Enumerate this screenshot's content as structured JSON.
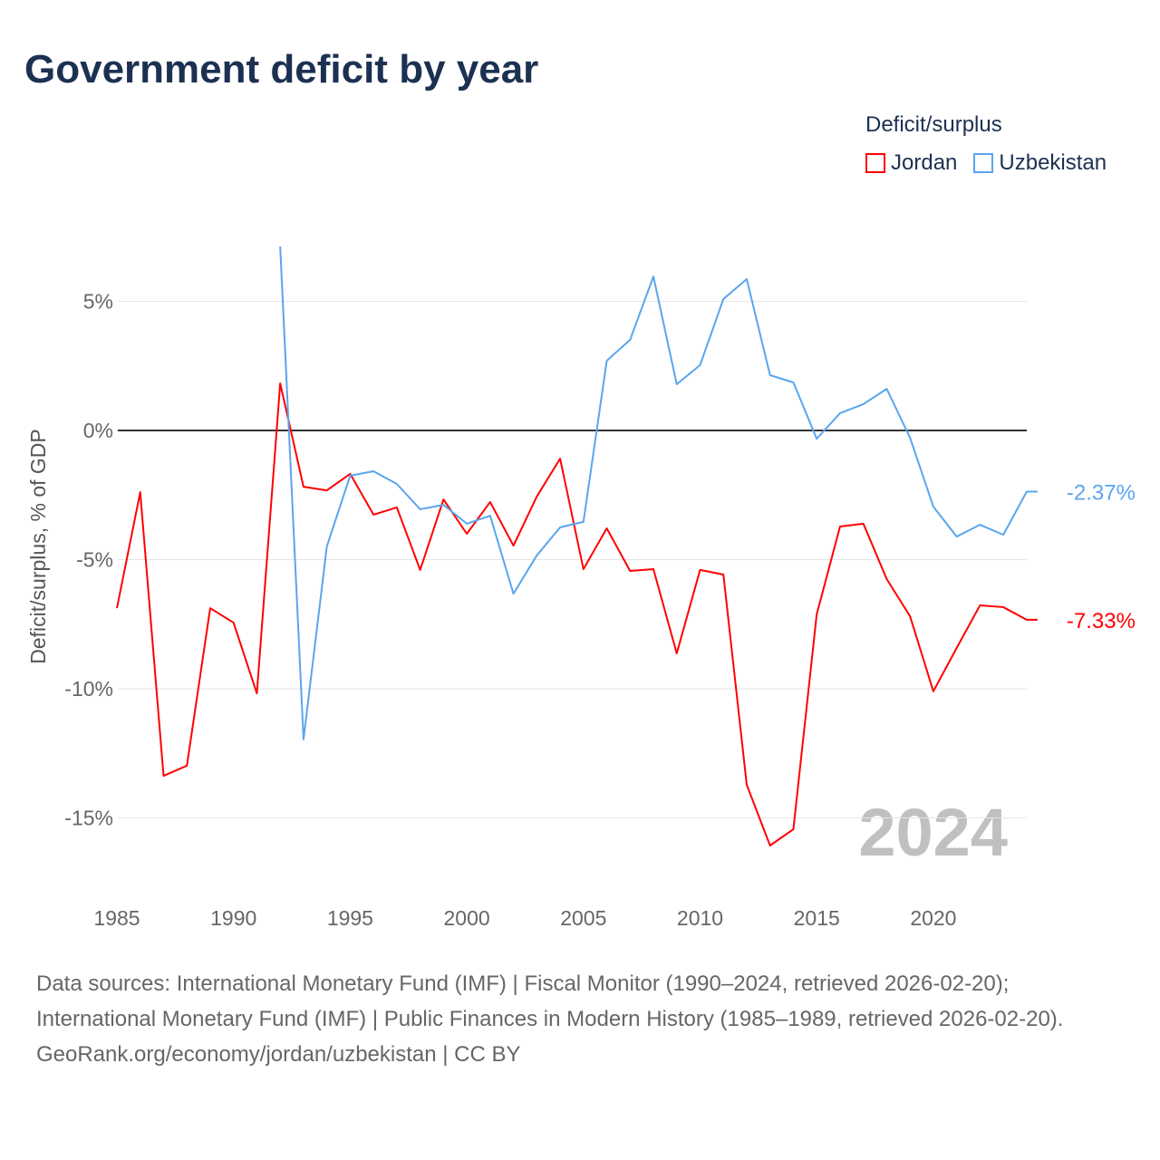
{
  "title": "Government deficit by year",
  "legend": {
    "title": "Deficit/surplus",
    "items": [
      {
        "label": "Jordan",
        "color": "#ff0000"
      },
      {
        "label": "Uzbekistan",
        "color": "#5aa5ef"
      }
    ]
  },
  "year_watermark": "2024",
  "chart_data": {
    "type": "line",
    "title": "Government deficit by year",
    "xlabel": "",
    "ylabel": "Deficit/surplus, % of GDP",
    "xlim": [
      1985,
      2024
    ],
    "ylim": [
      -17,
      7.2
    ],
    "x_ticks": [
      1985,
      1990,
      1995,
      2000,
      2005,
      2010,
      2015,
      2020
    ],
    "x_tick_labels": [
      "1985",
      "1990",
      "1995",
      "2000",
      "2005",
      "2010",
      "2015",
      "2020"
    ],
    "y_ticks": [
      5,
      0,
      -5,
      -10,
      -15
    ],
    "y_tick_labels": [
      "5%",
      "0%",
      "-5%",
      "-10%",
      "-15%"
    ],
    "grid": true,
    "legend_position": "top-right",
    "series": [
      {
        "name": "Jordan",
        "color": "#ff0000",
        "end_label": "-7.33%",
        "x": [
          1985,
          1986,
          1987,
          1988,
          1989,
          1990,
          1991,
          1992,
          1993,
          1994,
          1995,
          1996,
          1997,
          1998,
          1999,
          2000,
          2001,
          2002,
          2003,
          2004,
          2005,
          2006,
          2007,
          2008,
          2009,
          2010,
          2011,
          2012,
          2013,
          2014,
          2015,
          2016,
          2017,
          2018,
          2019,
          2020,
          2021,
          2022,
          2023,
          2024
        ],
        "values": [
          -6.88,
          -2.39,
          -13.37,
          -12.98,
          -6.88,
          -7.44,
          -10.18,
          1.82,
          -2.18,
          -2.32,
          -1.68,
          -3.26,
          -2.98,
          -5.4,
          -2.67,
          -4.0,
          -2.77,
          -4.46,
          -2.56,
          -1.09,
          -5.37,
          -3.79,
          -5.44,
          -5.37,
          -8.63,
          -5.4,
          -5.58,
          -13.72,
          -16.07,
          -15.44,
          -7.12,
          -3.72,
          -3.61,
          -5.75,
          -7.19,
          -10.1,
          -8.42,
          -6.77,
          -6.84,
          -7.33
        ]
      },
      {
        "name": "Uzbekistan",
        "color": "#5aa5ef",
        "end_label": "-2.37%",
        "x": [
          1992,
          1993,
          1994,
          1995,
          1996,
          1997,
          1998,
          1999,
          2000,
          2001,
          2002,
          2003,
          2004,
          2005,
          2006,
          2007,
          2008,
          2009,
          2010,
          2011,
          2012,
          2013,
          2014,
          2015,
          2016,
          2017,
          2018,
          2019,
          2020,
          2021,
          2022,
          2023,
          2024
        ],
        "values": [
          7.12,
          -11.96,
          -4.49,
          -1.75,
          -1.58,
          -2.07,
          -3.05,
          -2.88,
          -3.61,
          -3.3,
          -6.32,
          -4.84,
          -3.75,
          -3.54,
          2.7,
          3.51,
          5.96,
          1.79,
          2.53,
          5.09,
          5.86,
          2.14,
          1.86,
          -0.32,
          0.67,
          1.02,
          1.61,
          -0.28,
          -2.95,
          -4.11,
          -3.65,
          -4.04,
          -2.37
        ]
      }
    ]
  },
  "footer": {
    "sources": "Data sources: International Monetary Fund (IMF) | Fiscal Monitor (1990–2024, retrieved 2026-02-20); International Monetary Fund (IMF) | Public Finances in Modern History (1985–1989, retrieved 2026-02-20).",
    "credit": "GeoRank.org/economy/jordan/uzbekistan | CC BY"
  }
}
